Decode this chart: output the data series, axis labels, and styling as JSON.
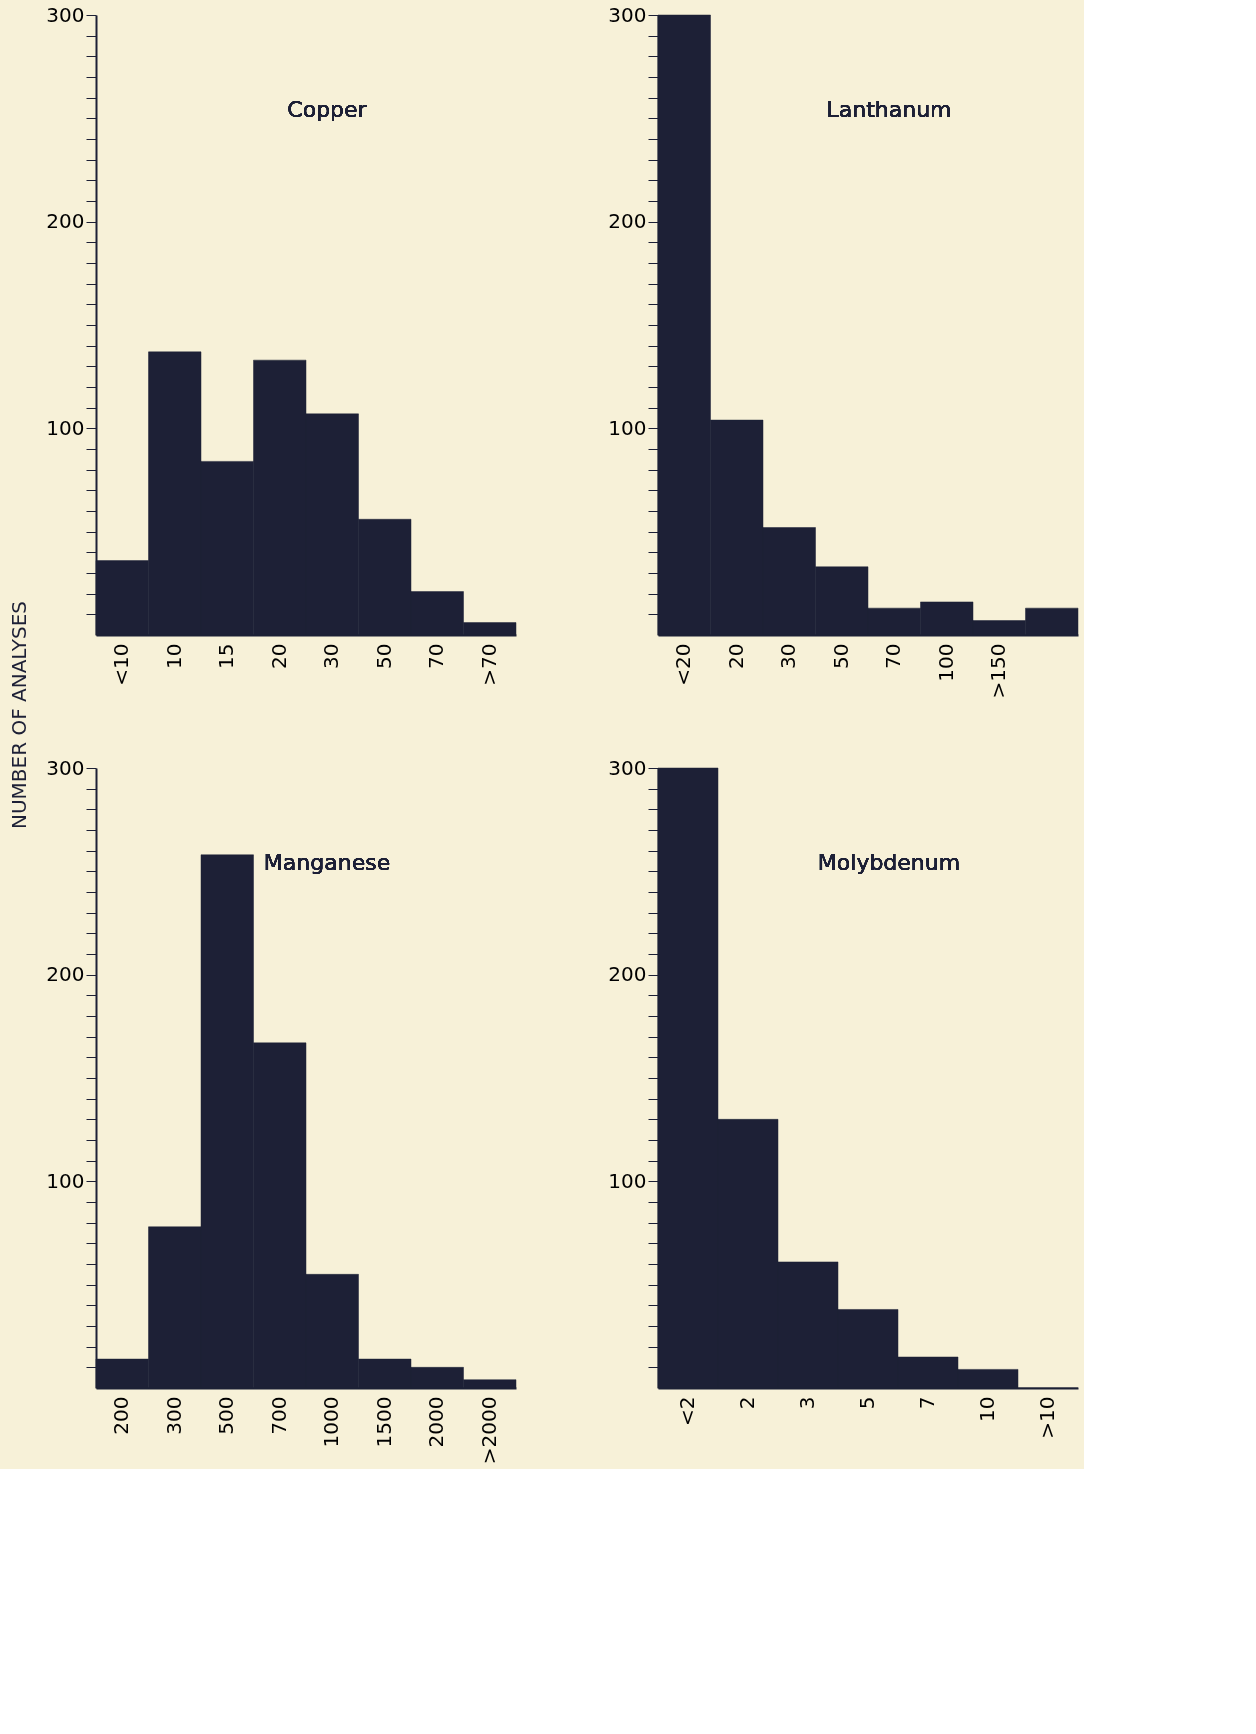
{
  "chart_data": [
    {
      "type": "bar",
      "title": "Copper",
      "ylabel": "NUMBER OF ANALYSES",
      "categories": [
        "<10",
        "10",
        "15",
        "20",
        "30",
        "50",
        "70",
        ">70"
      ],
      "values": [
        36,
        137,
        84,
        133,
        107,
        56,
        21,
        6
      ],
      "color": "#1d2036",
      "ylim": [
        0,
        300
      ],
      "yticks": [
        {
          "value": 10,
          "label": null
        },
        {
          "value": 20,
          "label": null
        },
        {
          "value": 30,
          "label": null
        },
        {
          "value": 40,
          "label": null
        },
        {
          "value": 50,
          "label": null
        },
        {
          "value": 60,
          "label": null
        },
        {
          "value": 70,
          "label": null
        },
        {
          "value": 80,
          "label": null
        },
        {
          "value": 90,
          "label": null
        },
        100,
        {
          "value": 110,
          "label": null
        },
        {
          "value": 120,
          "label": null
        },
        {
          "value": 130,
          "label": null
        },
        {
          "value": 140,
          "label": null
        },
        {
          "value": 150,
          "label": null
        },
        {
          "value": 160,
          "label": null
        },
        {
          "value": 170,
          "label": null
        },
        {
          "value": 180,
          "label": null
        },
        {
          "value": 190,
          "label": null
        },
        200,
        {
          "value": 210,
          "label": null
        },
        {
          "value": 220,
          "label": null
        },
        {
          "value": 230,
          "label": null
        },
        {
          "value": 240,
          "label": null
        },
        {
          "value": 250,
          "label": null
        },
        {
          "value": 260,
          "label": null
        },
        {
          "value": 270,
          "label": null
        },
        {
          "value": 280,
          "label": null
        },
        {
          "value": 290,
          "label": null
        },
        300
      ]
    },
    {
      "type": "bar",
      "title": "Lanthanum",
      "categories": [
        "<20",
        "20",
        "30",
        "50",
        "70",
        "100",
        ">150",
        null
      ],
      "values": [
        300,
        104,
        52,
        33,
        13,
        16,
        7,
        13
      ],
      "color": "#1d2036",
      "ylim": [
        0,
        300
      ],
      "yticks": [
        {
          "value": 10,
          "label": null
        },
        {
          "value": 20,
          "label": null
        },
        {
          "value": 30,
          "label": null
        },
        {
          "value": 40,
          "label": null
        },
        {
          "value": 50,
          "label": null
        },
        {
          "value": 60,
          "label": null
        },
        {
          "value": 70,
          "label": null
        },
        {
          "value": 80,
          "label": null
        },
        {
          "value": 90,
          "label": null
        },
        100,
        {
          "value": 110,
          "label": null
        },
        {
          "value": 120,
          "label": null
        },
        {
          "value": 130,
          "label": null
        },
        {
          "value": 140,
          "label": null
        },
        {
          "value": 150,
          "label": null
        },
        {
          "value": 160,
          "label": null
        },
        {
          "value": 170,
          "label": null
        },
        {
          "value": 180,
          "label": null
        },
        {
          "value": 190,
          "label": null
        },
        200,
        {
          "value": 210,
          "label": null
        },
        {
          "value": 220,
          "label": null
        },
        {
          "value": 230,
          "label": null
        },
        {
          "value": 240,
          "label": null
        },
        {
          "value": 250,
          "label": null
        },
        {
          "value": 260,
          "label": null
        },
        {
          "value": 270,
          "label": null
        },
        {
          "value": 280,
          "label": null
        },
        {
          "value": 290,
          "label": null
        },
        300
      ]
    },
    {
      "type": "bar",
      "title": "Manganese",
      "categories": [
        "200",
        "300",
        "500",
        "700",
        "1000",
        "1500",
        "2000",
        ">2000"
      ],
      "values": [
        14,
        78,
        258,
        167,
        55,
        14,
        10,
        4
      ],
      "color": "#1d2036",
      "ylim": [
        0,
        300
      ],
      "yticks": [
        {
          "value": 10,
          "label": null
        },
        {
          "value": 20,
          "label": null
        },
        {
          "value": 30,
          "label": null
        },
        {
          "value": 40,
          "label": null
        },
        {
          "value": 50,
          "label": null
        },
        {
          "value": 60,
          "label": null
        },
        {
          "value": 70,
          "label": null
        },
        {
          "value": 80,
          "label": null
        },
        {
          "value": 90,
          "label": null
        },
        100,
        {
          "value": 110,
          "label": null
        },
        {
          "value": 120,
          "label": null
        },
        {
          "value": 130,
          "label": null
        },
        {
          "value": 140,
          "label": null
        },
        {
          "value": 150,
          "label": null
        },
        {
          "value": 160,
          "label": null
        },
        {
          "value": 170,
          "label": null
        },
        {
          "value": 180,
          "label": null
        },
        {
          "value": 190,
          "label": null
        },
        200,
        {
          "value": 210,
          "label": null
        },
        {
          "value": 220,
          "label": null
        },
        {
          "value": 230,
          "label": null
        },
        {
          "value": 240,
          "label": null
        },
        {
          "value": 250,
          "label": null
        },
        {
          "value": 260,
          "label": null
        },
        {
          "value": 270,
          "label": null
        },
        {
          "value": 280,
          "label": null
        },
        {
          "value": 290,
          "label": null
        },
        300
      ]
    },
    {
      "type": "bar",
      "title": "Molybdenum",
      "categories": [
        "<2",
        "2",
        "3",
        "5",
        "7",
        "10",
        ">10"
      ],
      "values": [
        300,
        130,
        61,
        38,
        15,
        9,
        0
      ],
      "color": "#1d2036",
      "ylim": [
        0,
        300
      ],
      "yticks": [
        {
          "value": 10,
          "label": null
        },
        {
          "value": 20,
          "label": null
        },
        {
          "value": 30,
          "label": null
        },
        {
          "value": 40,
          "label": null
        },
        {
          "value": 50,
          "label": null
        },
        {
          "value": 60,
          "label": null
        },
        {
          "value": 70,
          "label": null
        },
        {
          "value": 80,
          "label": null
        },
        {
          "value": 90,
          "label": null
        },
        100,
        {
          "value": 110,
          "label": null
        },
        {
          "value": 120,
          "label": null
        },
        {
          "value": 130,
          "label": null
        },
        {
          "value": 140,
          "label": null
        },
        {
          "value": 150,
          "label": null
        },
        {
          "value": 160,
          "label": null
        },
        {
          "value": 170,
          "label": null
        },
        {
          "value": 180,
          "label": null
        },
        {
          "value": 190,
          "label": null
        },
        200,
        {
          "value": 210,
          "label": null
        },
        {
          "value": 220,
          "label": null
        },
        {
          "value": 230,
          "label": null
        },
        {
          "value": 240,
          "label": null
        },
        {
          "value": 250,
          "label": null
        },
        {
          "value": 260,
          "label": null
        },
        {
          "value": 270,
          "label": null
        },
        {
          "value": 280,
          "label": null
        },
        {
          "value": 290,
          "label": null
        },
        300
      ]
    }
  ]
}
